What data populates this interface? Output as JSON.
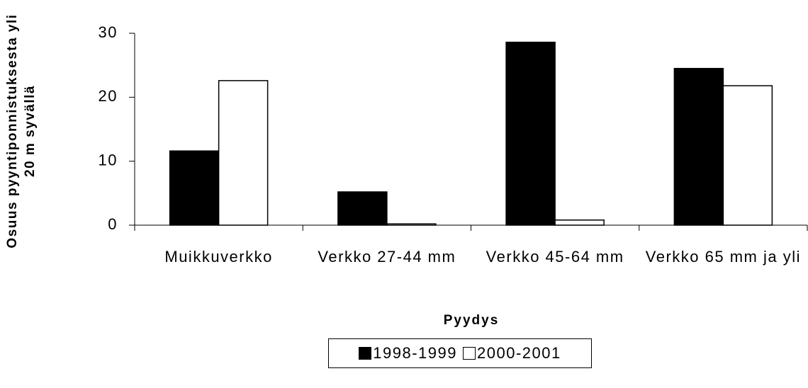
{
  "chart_data": {
    "type": "bar",
    "categories": [
      "Muikkuverkko",
      "Verkko 27-44 mm",
      "Verkko 45-64 mm",
      "Verkko 65 mm ja yli"
    ],
    "series": [
      {
        "name": "1998-1999",
        "color": "#000000",
        "values": [
          11.6,
          5.2,
          28.6,
          24.5
        ]
      },
      {
        "name": "2000-2001",
        "color": "#ffffff",
        "values": [
          22.6,
          0.2,
          0.8,
          21.8
        ]
      }
    ],
    "xlabel": "Pyydys",
    "ylabel": "Osuus pyyntiponnistuksesta yli 20 m syvällä",
    "ylim": [
      0,
      30
    ],
    "yticks": [
      0,
      10,
      20,
      30
    ],
    "grid": false,
    "legend": "bottom"
  }
}
